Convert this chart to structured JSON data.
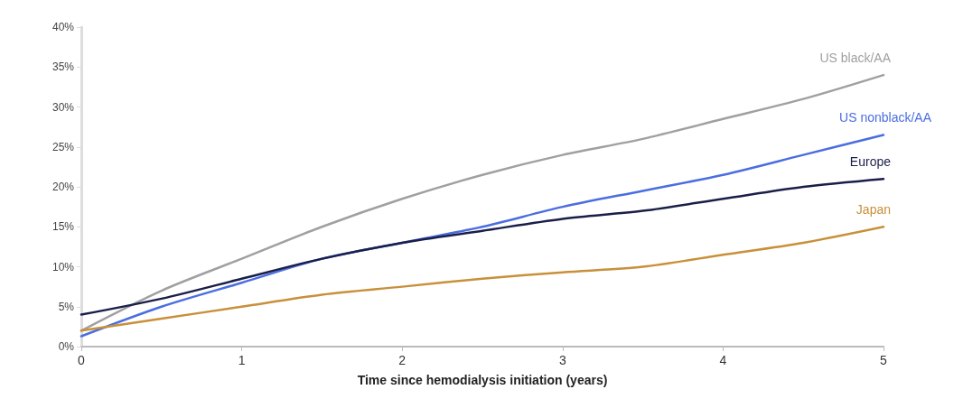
{
  "chart_data": {
    "type": "line",
    "xlabel": "Time since hemodialysis initiation (years)",
    "x": [
      0,
      0.5,
      1,
      1.5,
      2,
      2.5,
      3,
      3.5,
      4,
      4.5,
      5
    ],
    "series": [
      {
        "name": "US black/AA",
        "color": "#a0a0a0",
        "values": [
          2,
          7,
          11,
          15,
          18.5,
          21.5,
          24,
          26,
          28.5,
          31,
          34
        ]
      },
      {
        "name": "US nonblack/AA",
        "color": "#4a6ee0",
        "values": [
          1.3,
          5,
          8,
          11,
          13,
          15,
          17.5,
          19.5,
          21.5,
          24,
          26.5
        ]
      },
      {
        "name": "Europe",
        "color": "#1a1f4a",
        "values": [
          4,
          6,
          8.5,
          11,
          13,
          14.5,
          16,
          17,
          18.5,
          20,
          21
        ]
      },
      {
        "name": "Japan",
        "color": "#c8903a",
        "values": [
          2,
          3.5,
          5,
          6.5,
          7.5,
          8.5,
          9.3,
          10,
          11.5,
          13,
          15
        ]
      }
    ],
    "xlim": [
      0,
      5
    ],
    "xticks": [
      0,
      1,
      2,
      3,
      4,
      5
    ],
    "ylim": [
      0,
      40
    ],
    "yticks": [
      {
        "value": 0,
        "label": "0%"
      },
      {
        "value": 5,
        "label": "5%"
      },
      {
        "value": 10,
        "label": "10%"
      },
      {
        "value": 15,
        "label": "15%"
      },
      {
        "value": 20,
        "label": "20%"
      },
      {
        "value": 25,
        "label": "25%"
      },
      {
        "value": 30,
        "label": "30%"
      },
      {
        "value": 35,
        "label": "35%"
      },
      {
        "value": 40,
        "label": "40%"
      }
    ],
    "grid": false,
    "legend": false,
    "marker": "none",
    "line_style": "solid"
  }
}
